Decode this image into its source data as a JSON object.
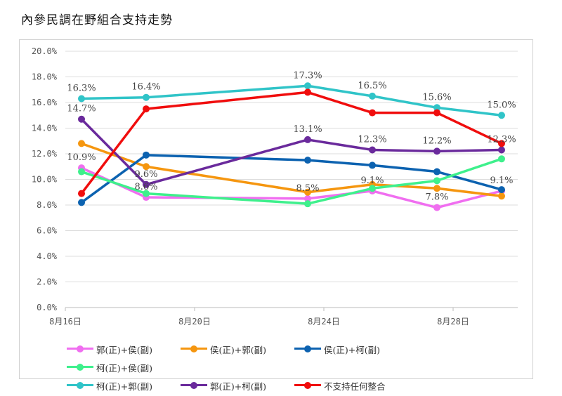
{
  "chart_data": {
    "type": "line",
    "title": "內參民調在野組合支持走勢",
    "xlabel": "",
    "ylabel": "",
    "x": [
      16.5,
      18.5,
      23.5,
      25.5,
      27.5,
      29.5
    ],
    "xlim": [
      16,
      30
    ],
    "x_ticks": [
      {
        "v": 16,
        "label": "8月16日"
      },
      {
        "v": 20,
        "label": "8月20日"
      },
      {
        "v": 24,
        "label": "8月24日"
      },
      {
        "v": 28,
        "label": "8月28日"
      }
    ],
    "ylim": [
      0,
      20
    ],
    "y_ticks": [
      "0.0%",
      "2.0%",
      "4.0%",
      "6.0%",
      "8.0%",
      "10.0%",
      "12.0%",
      "14.0%",
      "16.0%",
      "18.0%",
      "20.0%"
    ],
    "grid": true,
    "legend_position": "bottom",
    "series": [
      {
        "name": "郭(正)+侯(副)",
        "color": "#f06ef0",
        "values": [
          10.9,
          8.6,
          8.5,
          9.1,
          7.8,
          9.1
        ],
        "labels": [
          "10.9%",
          "8.6%",
          "8.5%",
          "9.1%",
          "7.8%",
          "9.1%"
        ]
      },
      {
        "name": "侯(正)+郭(副)",
        "color": "#f5960f",
        "values": [
          12.8,
          11.0,
          9.0,
          9.6,
          9.3,
          8.7
        ]
      },
      {
        "name": "侯(正)+柯(副)",
        "color": "#0c62b0",
        "values": [
          8.2,
          11.9,
          11.5,
          11.1,
          10.6,
          9.2
        ]
      },
      {
        "name": "柯(正)+侯(副)",
        "color": "#3ef08c",
        "values": [
          10.6,
          8.9,
          8.1,
          9.3,
          9.9,
          11.6
        ]
      },
      {
        "name": "柯(正)+郭(副)",
        "color": "#30c4c8",
        "values": [
          16.3,
          16.4,
          17.3,
          16.5,
          15.6,
          15.0
        ],
        "labels": [
          "16.3%",
          "16.4%",
          "17.3%",
          "16.5%",
          "15.6%",
          "15.0%"
        ]
      },
      {
        "name": "郭(正)+柯(副)",
        "color": "#6a2a9c",
        "values": [
          14.7,
          9.6,
          13.1,
          12.3,
          12.2,
          12.3
        ],
        "labels": [
          "14.7%",
          "9.6%",
          "13.1%",
          "12.3%",
          "12.2%",
          "12.3%"
        ]
      },
      {
        "name": "不支持任何整合",
        "color": "#f00d0d",
        "values": [
          8.9,
          15.5,
          16.8,
          15.2,
          15.2,
          12.8
        ]
      }
    ]
  }
}
